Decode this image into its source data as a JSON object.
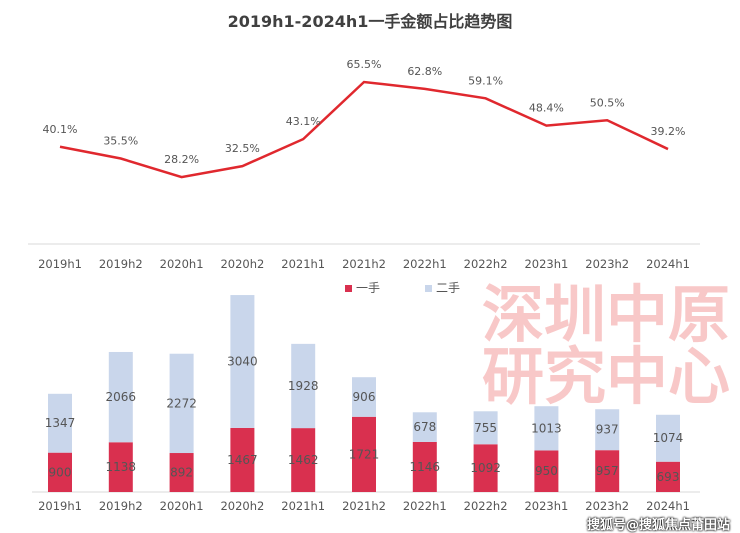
{
  "chart_data": [
    {
      "type": "line",
      "title": "2019h1-2024h1一手金额占比趋势图",
      "categories": [
        "2019h1",
        "2019h2",
        "2020h1",
        "2020h2",
        "2021h1",
        "2021h2",
        "2022h1",
        "2022h2",
        "2023h1",
        "2023h2",
        "2024h1"
      ],
      "values": [
        40.1,
        35.5,
        28.2,
        32.5,
        43.1,
        65.5,
        62.8,
        59.1,
        48.4,
        50.5,
        39.2
      ],
      "labels": [
        "40.1%",
        "35.5%",
        "28.2%",
        "32.5%",
        "43.1%",
        "65.5%",
        "62.8%",
        "59.1%",
        "48.4%",
        "50.5%",
        "39.2%"
      ],
      "color": "#e0282e"
    },
    {
      "type": "bar",
      "stacked": true,
      "categories": [
        "2019h1",
        "2019h2",
        "2020h1",
        "2020h2",
        "2021h1",
        "2021h2",
        "2022h1",
        "2022h2",
        "2023h1",
        "2023h2",
        "2024h1"
      ],
      "series": [
        {
          "name": "一手",
          "color": "#d9304f",
          "values": [
            900,
            1138,
            892,
            1467,
            1462,
            1721,
            1146,
            1092,
            950,
            957,
            693
          ]
        },
        {
          "name": "二手",
          "color": "#c9d6eb",
          "values": [
            1347,
            2066,
            2272,
            3040,
            1928,
            906,
            678,
            755,
            1013,
            937,
            1074
          ]
        }
      ],
      "legend": "top-center"
    }
  ],
  "watermark": {
    "line1": "深圳中原",
    "line2": "研究中心"
  },
  "source_watermark": "搜狐号@搜狐焦点莆田站"
}
